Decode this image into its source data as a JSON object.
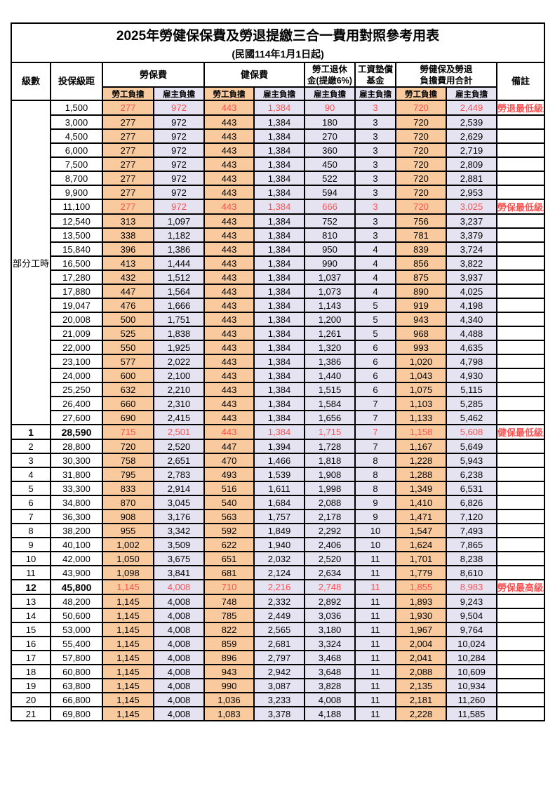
{
  "title": "2025年勞健保保費及勞退提繳三合一費用對照參考用表",
  "subtitle": "(民國114年1月1日起)",
  "colors": {
    "employee_column_bg": "#F8CA9D",
    "employer_column_bg": "#E5E2F1",
    "highlight_text": "#FF5050",
    "border": "#000000"
  },
  "header": {
    "level": "級數",
    "bracket": "投保級距",
    "labor_ins": "勞保費",
    "health_ins": "健保費",
    "pension_line1": "勞工退休",
    "pension_line2": "金(提繳6%)",
    "wage_fund_line1": "工資墊償",
    "wage_fund_line2": "基金",
    "total_line1": "勞健保及勞退",
    "total_line2": "負擔費用合計",
    "remark": "備註",
    "employee": "勞工負擔",
    "employer": "雇主負擔"
  },
  "table": {
    "rows": [
      {
        "level": "部分工時",
        "level_span": 23,
        "bracket": "1,500",
        "v": [
          "277",
          "972",
          "443",
          "1,384",
          "90",
          "3",
          "720",
          "2,449"
        ],
        "remark": "勞退最低級距",
        "red": true
      },
      {
        "bracket": "3,000",
        "v": [
          "277",
          "972",
          "443",
          "1,384",
          "180",
          "3",
          "720",
          "2,539"
        ],
        "remark": ""
      },
      {
        "bracket": "4,500",
        "v": [
          "277",
          "972",
          "443",
          "1,384",
          "270",
          "3",
          "720",
          "2,629"
        ],
        "remark": ""
      },
      {
        "bracket": "6,000",
        "v": [
          "277",
          "972",
          "443",
          "1,384",
          "360",
          "3",
          "720",
          "2,719"
        ],
        "remark": ""
      },
      {
        "bracket": "7,500",
        "v": [
          "277",
          "972",
          "443",
          "1,384",
          "450",
          "3",
          "720",
          "2,809"
        ],
        "remark": ""
      },
      {
        "bracket": "8,700",
        "v": [
          "277",
          "972",
          "443",
          "1,384",
          "522",
          "3",
          "720",
          "2,881"
        ],
        "remark": ""
      },
      {
        "bracket": "9,900",
        "v": [
          "277",
          "972",
          "443",
          "1,384",
          "594",
          "3",
          "720",
          "2,953"
        ],
        "remark": ""
      },
      {
        "bracket": "11,100",
        "v": [
          "277",
          "972",
          "443",
          "1,384",
          "666",
          "3",
          "720",
          "3,025"
        ],
        "remark": "勞保最低級距",
        "red": true
      },
      {
        "bracket": "12,540",
        "v": [
          "313",
          "1,097",
          "443",
          "1,384",
          "752",
          "3",
          "756",
          "3,237"
        ],
        "remark": ""
      },
      {
        "bracket": "13,500",
        "v": [
          "338",
          "1,182",
          "443",
          "1,384",
          "810",
          "3",
          "781",
          "3,379"
        ],
        "remark": ""
      },
      {
        "bracket": "15,840",
        "v": [
          "396",
          "1,386",
          "443",
          "1,384",
          "950",
          "4",
          "839",
          "3,724"
        ],
        "remark": ""
      },
      {
        "bracket": "16,500",
        "v": [
          "413",
          "1,444",
          "443",
          "1,384",
          "990",
          "4",
          "856",
          "3,822"
        ],
        "remark": ""
      },
      {
        "bracket": "17,280",
        "v": [
          "432",
          "1,512",
          "443",
          "1,384",
          "1,037",
          "4",
          "875",
          "3,937"
        ],
        "remark": ""
      },
      {
        "bracket": "17,880",
        "v": [
          "447",
          "1,564",
          "443",
          "1,384",
          "1,073",
          "4",
          "890",
          "4,025"
        ],
        "remark": ""
      },
      {
        "bracket": "19,047",
        "v": [
          "476",
          "1,666",
          "443",
          "1,384",
          "1,143",
          "5",
          "919",
          "4,198"
        ],
        "remark": ""
      },
      {
        "bracket": "20,008",
        "v": [
          "500",
          "1,751",
          "443",
          "1,384",
          "1,200",
          "5",
          "943",
          "4,340"
        ],
        "remark": ""
      },
      {
        "bracket": "21,009",
        "v": [
          "525",
          "1,838",
          "443",
          "1,384",
          "1,261",
          "5",
          "968",
          "4,488"
        ],
        "remark": ""
      },
      {
        "bracket": "22,000",
        "v": [
          "550",
          "1,925",
          "443",
          "1,384",
          "1,320",
          "6",
          "993",
          "4,635"
        ],
        "remark": ""
      },
      {
        "bracket": "23,100",
        "v": [
          "577",
          "2,022",
          "443",
          "1,384",
          "1,386",
          "6",
          "1,020",
          "4,798"
        ],
        "remark": ""
      },
      {
        "bracket": "24,000",
        "v": [
          "600",
          "2,100",
          "443",
          "1,384",
          "1,440",
          "6",
          "1,043",
          "4,930"
        ],
        "remark": ""
      },
      {
        "bracket": "25,250",
        "v": [
          "632",
          "2,210",
          "443",
          "1,384",
          "1,515",
          "6",
          "1,075",
          "5,115"
        ],
        "remark": ""
      },
      {
        "bracket": "26,400",
        "v": [
          "660",
          "2,310",
          "443",
          "1,384",
          "1,584",
          "7",
          "1,103",
          "5,285"
        ],
        "remark": ""
      },
      {
        "bracket": "27,600",
        "v": [
          "690",
          "2,415",
          "443",
          "1,384",
          "1,656",
          "7",
          "1,133",
          "5,462"
        ],
        "remark": ""
      },
      {
        "level": "1",
        "bracket": "28,590",
        "v": [
          "715",
          "2,501",
          "443",
          "1,384",
          "1,715",
          "7",
          "1,158",
          "5,608"
        ],
        "remark": "健保最低級距",
        "red": true,
        "emph": true
      },
      {
        "level": "2",
        "bracket": "28,800",
        "v": [
          "720",
          "2,520",
          "447",
          "1,394",
          "1,728",
          "7",
          "1,167",
          "5,649"
        ],
        "remark": ""
      },
      {
        "level": "3",
        "bracket": "30,300",
        "v": [
          "758",
          "2,651",
          "470",
          "1,466",
          "1,818",
          "8",
          "1,228",
          "5,943"
        ],
        "remark": ""
      },
      {
        "level": "4",
        "bracket": "31,800",
        "v": [
          "795",
          "2,783",
          "493",
          "1,539",
          "1,908",
          "8",
          "1,288",
          "6,238"
        ],
        "remark": ""
      },
      {
        "level": "5",
        "bracket": "33,300",
        "v": [
          "833",
          "2,914",
          "516",
          "1,611",
          "1,998",
          "8",
          "1,349",
          "6,531"
        ],
        "remark": ""
      },
      {
        "level": "6",
        "bracket": "34,800",
        "v": [
          "870",
          "3,045",
          "540",
          "1,684",
          "2,088",
          "9",
          "1,410",
          "6,826"
        ],
        "remark": ""
      },
      {
        "level": "7",
        "bracket": "36,300",
        "v": [
          "908",
          "3,176",
          "563",
          "1,757",
          "2,178",
          "9",
          "1,471",
          "7,120"
        ],
        "remark": ""
      },
      {
        "level": "8",
        "bracket": "38,200",
        "v": [
          "955",
          "3,342",
          "592",
          "1,849",
          "2,292",
          "10",
          "1,547",
          "7,493"
        ],
        "remark": ""
      },
      {
        "level": "9",
        "bracket": "40,100",
        "v": [
          "1,002",
          "3,509",
          "622",
          "1,940",
          "2,406",
          "10",
          "1,624",
          "7,865"
        ],
        "remark": ""
      },
      {
        "level": "10",
        "bracket": "42,000",
        "v": [
          "1,050",
          "3,675",
          "651",
          "2,032",
          "2,520",
          "11",
          "1,701",
          "8,238"
        ],
        "remark": ""
      },
      {
        "level": "11",
        "bracket": "43,900",
        "v": [
          "1,098",
          "3,841",
          "681",
          "2,124",
          "2,634",
          "11",
          "1,779",
          "8,610"
        ],
        "remark": ""
      },
      {
        "level": "12",
        "bracket": "45,800",
        "v": [
          "1,145",
          "4,008",
          "710",
          "2,216",
          "2,748",
          "11",
          "1,855",
          "8,983"
        ],
        "remark": "勞保最高級距",
        "red": true,
        "emph": true
      },
      {
        "level": "13",
        "bracket": "48,200",
        "v": [
          "1,145",
          "4,008",
          "748",
          "2,332",
          "2,892",
          "11",
          "1,893",
          "9,243"
        ],
        "remark": ""
      },
      {
        "level": "14",
        "bracket": "50,600",
        "v": [
          "1,145",
          "4,008",
          "785",
          "2,449",
          "3,036",
          "11",
          "1,930",
          "9,504"
        ],
        "remark": ""
      },
      {
        "level": "15",
        "bracket": "53,000",
        "v": [
          "1,145",
          "4,008",
          "822",
          "2,565",
          "3,180",
          "11",
          "1,967",
          "9,764"
        ],
        "remark": ""
      },
      {
        "level": "16",
        "bracket": "55,400",
        "v": [
          "1,145",
          "4,008",
          "859",
          "2,681",
          "3,324",
          "11",
          "2,004",
          "10,024"
        ],
        "remark": ""
      },
      {
        "level": "17",
        "bracket": "57,800",
        "v": [
          "1,145",
          "4,008",
          "896",
          "2,797",
          "3,468",
          "11",
          "2,041",
          "10,284"
        ],
        "remark": ""
      },
      {
        "level": "18",
        "bracket": "60,800",
        "v": [
          "1,145",
          "4,008",
          "943",
          "2,942",
          "3,648",
          "11",
          "2,088",
          "10,609"
        ],
        "remark": ""
      },
      {
        "level": "19",
        "bracket": "63,800",
        "v": [
          "1,145",
          "4,008",
          "990",
          "3,087",
          "3,828",
          "11",
          "2,135",
          "10,934"
        ],
        "remark": ""
      },
      {
        "level": "20",
        "bracket": "66,800",
        "v": [
          "1,145",
          "4,008",
          "1,036",
          "3,233",
          "4,008",
          "11",
          "2,181",
          "11,260"
        ],
        "remark": ""
      },
      {
        "level": "21",
        "bracket": "69,800",
        "v": [
          "1,145",
          "4,008",
          "1,083",
          "3,378",
          "4,188",
          "11",
          "2,228",
          "11,585"
        ],
        "remark": ""
      }
    ]
  }
}
